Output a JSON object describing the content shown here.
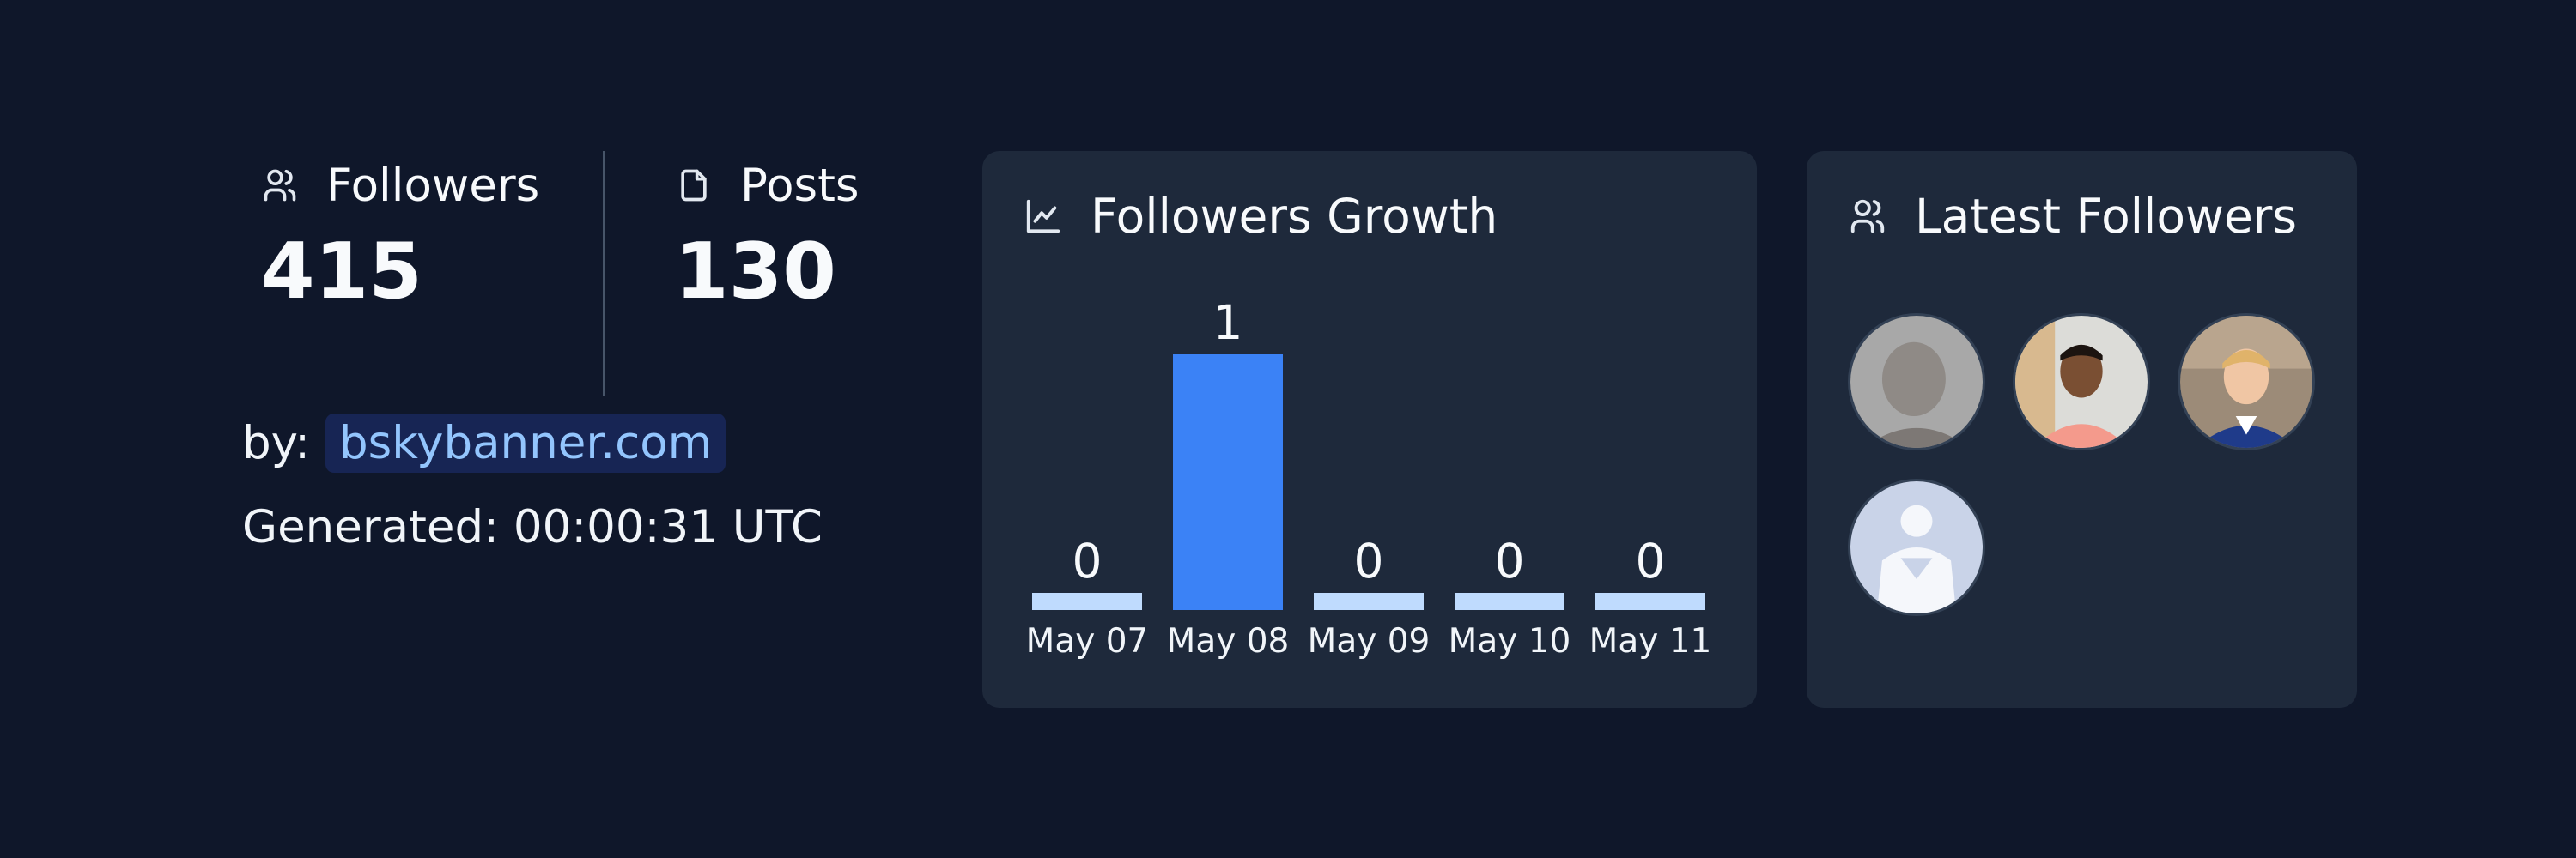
{
  "stats": {
    "followers": {
      "label": "Followers",
      "value": "415",
      "icon": "users-icon"
    },
    "posts": {
      "label": "Posts",
      "value": "130",
      "icon": "file-icon"
    }
  },
  "attribution": {
    "by_label": "by:",
    "link_text": "bskybanner.com"
  },
  "generated": "Generated: 00:00:31 UTC",
  "growth": {
    "title": "Followers Growth",
    "icon": "line-chart-icon"
  },
  "latest": {
    "title": "Latest Followers",
    "icon": "users-icon",
    "avatars": [
      {
        "name": "follower-avatar-1",
        "bg": "#a3a3a3"
      },
      {
        "name": "follower-avatar-2",
        "bg": "#e0c7a8"
      },
      {
        "name": "follower-avatar-3",
        "bg": "#8c7b6a"
      },
      {
        "name": "follower-avatar-4",
        "bg": "#c7d2e5"
      }
    ]
  },
  "colors": {
    "background": "#0f172a",
    "card": "#1e293b",
    "bar_active": "#3b82f6",
    "bar_zero": "#bfdbfe",
    "link": "#93c5fd"
  },
  "chart_data": {
    "type": "bar",
    "title": "Followers Growth",
    "categories": [
      "May 07",
      "May 08",
      "May 09",
      "May 10",
      "May 11"
    ],
    "values": [
      0,
      1,
      0,
      0,
      0
    ],
    "xlabel": "",
    "ylabel": "",
    "ylim": [
      0,
      1
    ],
    "grid": false
  }
}
